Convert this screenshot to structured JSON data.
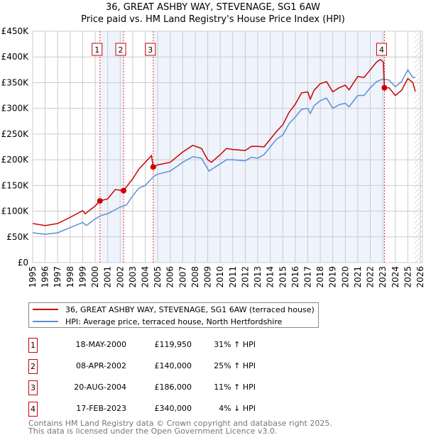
{
  "title": "36, GREAT ASHBY WAY, STEVENAGE, SG1 6AW",
  "subtitle": "Price paid vs. HM Land Registry's House Price Index (HPI)",
  "chart_data": {
    "type": "line",
    "title": "36, GREAT ASHBY WAY, STEVENAGE, SG1 6AW",
    "ylim": [
      0,
      450000
    ],
    "xlim": [
      1995,
      2026
    ],
    "y_ticks": [
      {
        "v": 0,
        "label": "£0"
      },
      {
        "v": 50000,
        "label": "£50K"
      },
      {
        "v": 100000,
        "label": "£100K"
      },
      {
        "v": 150000,
        "label": "£150K"
      },
      {
        "v": 200000,
        "label": "£200K"
      },
      {
        "v": 250000,
        "label": "£250K"
      },
      {
        "v": 300000,
        "label": "£300K"
      },
      {
        "v": 350000,
        "label": "£350K"
      },
      {
        "v": 400000,
        "label": "£400K"
      },
      {
        "v": 450000,
        "label": "£450K"
      }
    ],
    "x_ticks": [
      "1995",
      "1996",
      "1997",
      "1998",
      "1999",
      "2000",
      "2001",
      "2002",
      "2003",
      "2004",
      "2005",
      "2006",
      "2007",
      "2008",
      "2009",
      "2010",
      "2011",
      "2012",
      "2013",
      "2014",
      "2015",
      "2016",
      "2017",
      "2018",
      "2019",
      "2020",
      "2021",
      "2022",
      "2023",
      "2024",
      "2025",
      "2026"
    ],
    "grid": true,
    "series": [
      {
        "name": "36, GREAT ASHBY WAY, STEVENAGE, SG1 6AW (terraced house)",
        "color": "#cc0000",
        "x": [
          1995,
          1996,
          1997,
          1998,
          1999,
          1999.2,
          2000,
          2000.38,
          2001,
          2001.6,
          2002.27,
          2003,
          2003.5,
          2004,
          2004.5,
          2004.64,
          2005,
          2006,
          2007,
          2007.8,
          2008.5,
          2009,
          2009.3,
          2010,
          2010.5,
          2011,
          2012,
          2012.5,
          2013,
          2013.5,
          2014,
          2014.5,
          2015,
          2015.5,
          2016,
          2016.5,
          2017,
          2017.2,
          2017.5,
          2018,
          2018.5,
          2019,
          2019.5,
          2020,
          2020.3,
          2021,
          2021.5,
          2022,
          2022.5,
          2022.8,
          2023.05,
          2023.13,
          2023.5,
          2024,
          2024.5,
          2025,
          2025.4,
          2025.6
        ],
        "y": [
          76000,
          72000,
          76000,
          88000,
          101000,
          95000,
          110000,
          120000,
          124000,
          142000,
          140000,
          163000,
          182000,
          195000,
          208000,
          186000,
          190000,
          195000,
          215000,
          228000,
          222000,
          200000,
          195000,
          210000,
          222000,
          220000,
          218000,
          226000,
          226000,
          225000,
          240000,
          255000,
          268000,
          292000,
          308000,
          330000,
          332000,
          318000,
          335000,
          348000,
          352000,
          332000,
          340000,
          345000,
          336000,
          362000,
          360000,
          375000,
          390000,
          395000,
          390000,
          340000,
          340000,
          325000,
          335000,
          358000,
          350000,
          333000
        ]
      },
      {
        "name": "HPI: Average price, terraced house, North Hertfordshire",
        "color": "#5b8fd4",
        "x": [
          1995,
          1996,
          1997,
          1998,
          1999,
          1999.3,
          2000,
          2000.5,
          2001,
          2002,
          2002.5,
          2003,
          2003.5,
          2004,
          2004.7,
          2005,
          2006,
          2007,
          2007.8,
          2008.5,
          2009.1,
          2010,
          2010.5,
          2011,
          2012,
          2012.5,
          2013,
          2013.5,
          2014,
          2014.5,
          2015,
          2015.5,
          2016,
          2016.5,
          2017,
          2017.2,
          2017.5,
          2018,
          2018.5,
          2019,
          2019.5,
          2020,
          2020.3,
          2021,
          2021.5,
          2022,
          2022.5,
          2023,
          2023.5,
          2024,
          2024.5,
          2025,
          2025.4,
          2025.6
        ],
        "y": [
          58000,
          55000,
          58000,
          68000,
          78000,
          72000,
          85000,
          92000,
          95000,
          108000,
          112000,
          130000,
          145000,
          150000,
          168000,
          172000,
          178000,
          195000,
          206000,
          203000,
          178000,
          192000,
          200000,
          200000,
          198000,
          205000,
          203000,
          210000,
          225000,
          240000,
          248000,
          270000,
          283000,
          298000,
          300000,
          290000,
          305000,
          315000,
          320000,
          300000,
          307000,
          310000,
          303000,
          325000,
          325000,
          340000,
          352000,
          357000,
          355000,
          342000,
          352000,
          375000,
          360000,
          360000
        ]
      }
    ],
    "sales": [
      {
        "id": "1",
        "x": 2000.38,
        "price": 119950,
        "date": "18-MAY-2000",
        "price_label": "£119,950",
        "hpi": "31% ↑ HPI"
      },
      {
        "id": "2",
        "x": 2002.27,
        "price": 140000,
        "date": "08-APR-2002",
        "price_label": "£140,000",
        "hpi": "25% ↑ HPI"
      },
      {
        "id": "3",
        "x": 2004.64,
        "price": 186000,
        "date": "20-AUG-2004",
        "price_label": "£186,000",
        "hpi": "11% ↑ HPI"
      },
      {
        "id": "4",
        "x": 2023.13,
        "price": 340000,
        "date": "17-FEB-2023",
        "price_label": "£340,000",
        "hpi": "4% ↓ HPI"
      }
    ],
    "legend_placement": "bottom"
  },
  "legend": {
    "red": "36, GREAT ASHBY WAY, STEVENAGE, SG1 6AW (terraced house)",
    "blue": "HPI: Average price, terraced house, North Hertfordshire"
  },
  "footer": {
    "line1": "Contains HM Land Registry data © Crown copyright and database right 2025.",
    "line2": "This data is licensed under the Open Government Licence v3.0."
  }
}
